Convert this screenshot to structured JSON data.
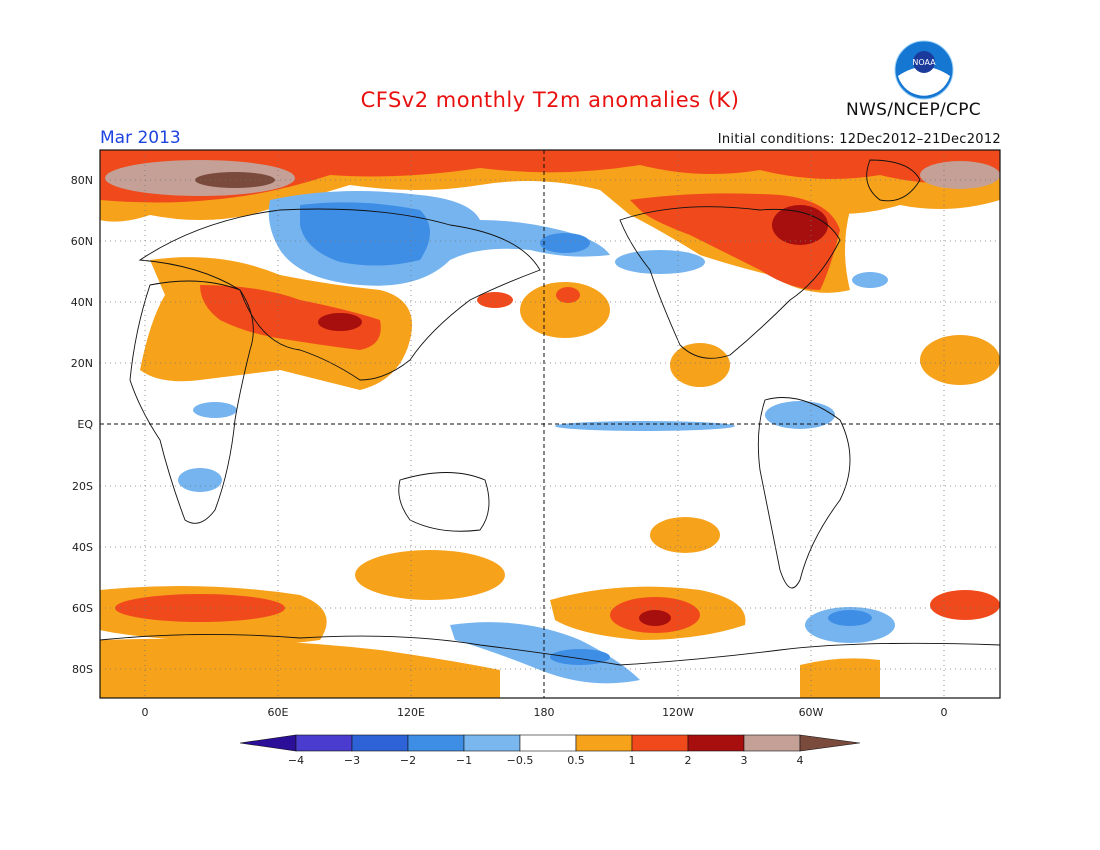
{
  "header": {
    "title": "CFSv2 monthly T2m anomalies (K)",
    "period": "Mar 2013",
    "initial_conditions": "Initial conditions: 12Dec2012–21Dec2012",
    "agency": "NWS/NCEP/CPC",
    "logo_text": "NOAA"
  },
  "map": {
    "lat_labels": [
      "80N",
      "60N",
      "40N",
      "20N",
      "EQ",
      "20S",
      "40S",
      "60S",
      "80S"
    ],
    "lon_labels": [
      "0",
      "60E",
      "120E",
      "180",
      "120W",
      "60W",
      "0"
    ],
    "colors": {
      "warm1": "#f7a21b",
      "warm2": "#f04a1c",
      "warm3": "#a70e0e",
      "warm4": "#c4a097",
      "warm5": "#7a4a3c",
      "cool1": "#75b4ef",
      "cool2": "#3f8ee6",
      "cool3": "#1e5ed6",
      "cool4": "#3b36c4"
    }
  },
  "colorbar": {
    "labels": [
      "−4",
      "−3",
      "−2",
      "−1",
      "−0.5",
      "0.5",
      "1",
      "2",
      "3",
      "4"
    ],
    "colors": [
      "#2b0f98",
      "#4a3ccf",
      "#2d63d6",
      "#3f8ee6",
      "#7ab7ef",
      "#ffffff",
      "#f7a21b",
      "#f04a1c",
      "#a70e0e",
      "#c4a097",
      "#7a4a3c"
    ]
  }
}
